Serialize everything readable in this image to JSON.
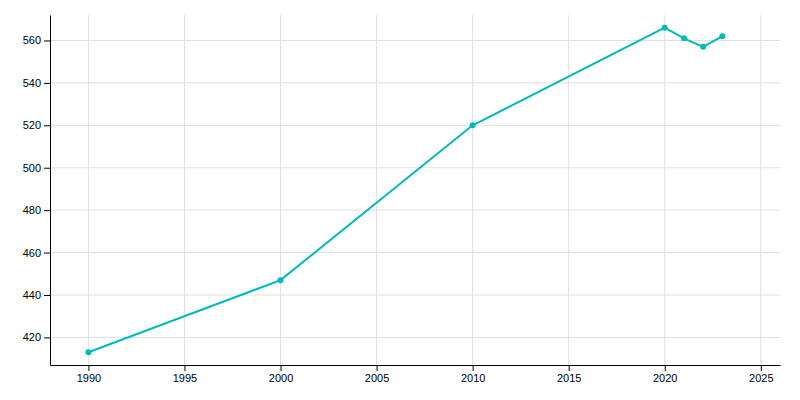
{
  "chart_data": {
    "type": "line",
    "x": [
      1990,
      2000,
      2010,
      2020,
      2021,
      2022,
      2023
    ],
    "values": [
      413,
      447,
      520,
      566,
      561,
      557,
      562
    ],
    "color": "#00BABA",
    "marker": "circle",
    "xlim": [
      1988,
      2026
    ],
    "ylim": [
      407,
      572
    ],
    "xticks": [
      1990,
      1995,
      2000,
      2005,
      2010,
      2015,
      2020,
      2025
    ],
    "yticks": [
      420,
      440,
      460,
      480,
      500,
      520,
      540,
      560
    ],
    "grid": true
  }
}
